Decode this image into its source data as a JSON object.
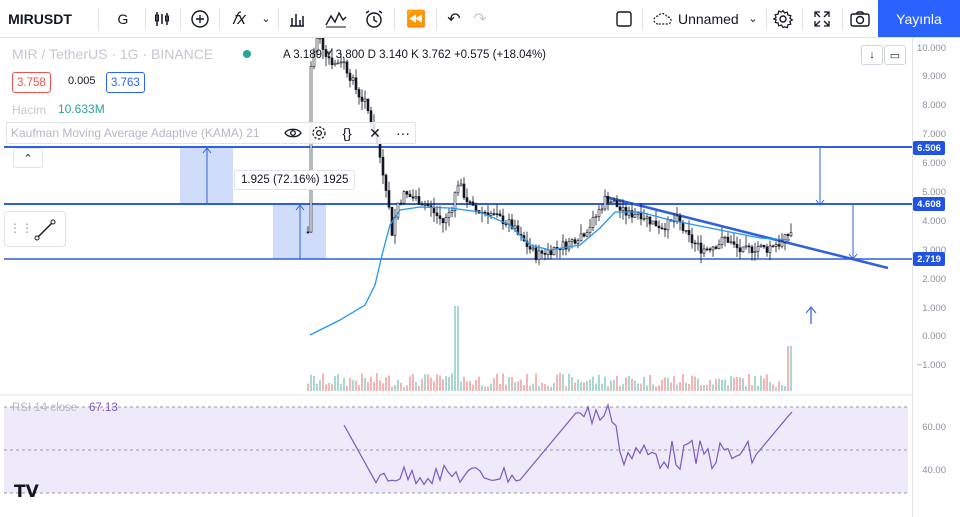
{
  "toolbar": {
    "symbol": "MIRUSDT",
    "interval": "G",
    "layout_name": "Unnamed",
    "publish_label": "Yayınla"
  },
  "legend": {
    "title": "MIR / TetherUS · 1G · BINANCE",
    "ohlc": "A 3.189 Y 3.800 D 3.140 K 3.762 +0.575 (+18.04%)",
    "bid": "3.758",
    "spread": "0.005",
    "ask": "3.763",
    "volume_label": "Hacim",
    "volume_value": "10.633M",
    "indicator": "Kaufman Moving Average Adaptive (KAMA) 21"
  },
  "measure": {
    "label": "1.925 (72.16%) 1925"
  },
  "price_axis": {
    "ticks": [
      "10.000",
      "9.000",
      "8.000",
      "7.000",
      "6.000",
      "5.000",
      "4.000",
      "3.000",
      "2.000",
      "1.000",
      "0.000",
      "−1.000"
    ],
    "tags": [
      "6.506",
      "4.608",
      "2.719"
    ],
    "rsi_ticks": [
      "60.00",
      "40.00"
    ]
  },
  "rsi": {
    "label": "RSI 14 close",
    "value": "67.13"
  },
  "colors": {
    "accent": "#2962ff",
    "line_blue": "#2f5ee0",
    "kama": "#2196f3",
    "rsi": "#7e57c2",
    "up": "#26a69a",
    "down": "#ef5350"
  },
  "chart_data": {
    "type": "candlestick",
    "horizontal_levels": [
      6.506,
      4.608,
      2.719
    ],
    "rsi_last": 67.13,
    "ylim": [
      -1.5,
      10
    ]
  }
}
